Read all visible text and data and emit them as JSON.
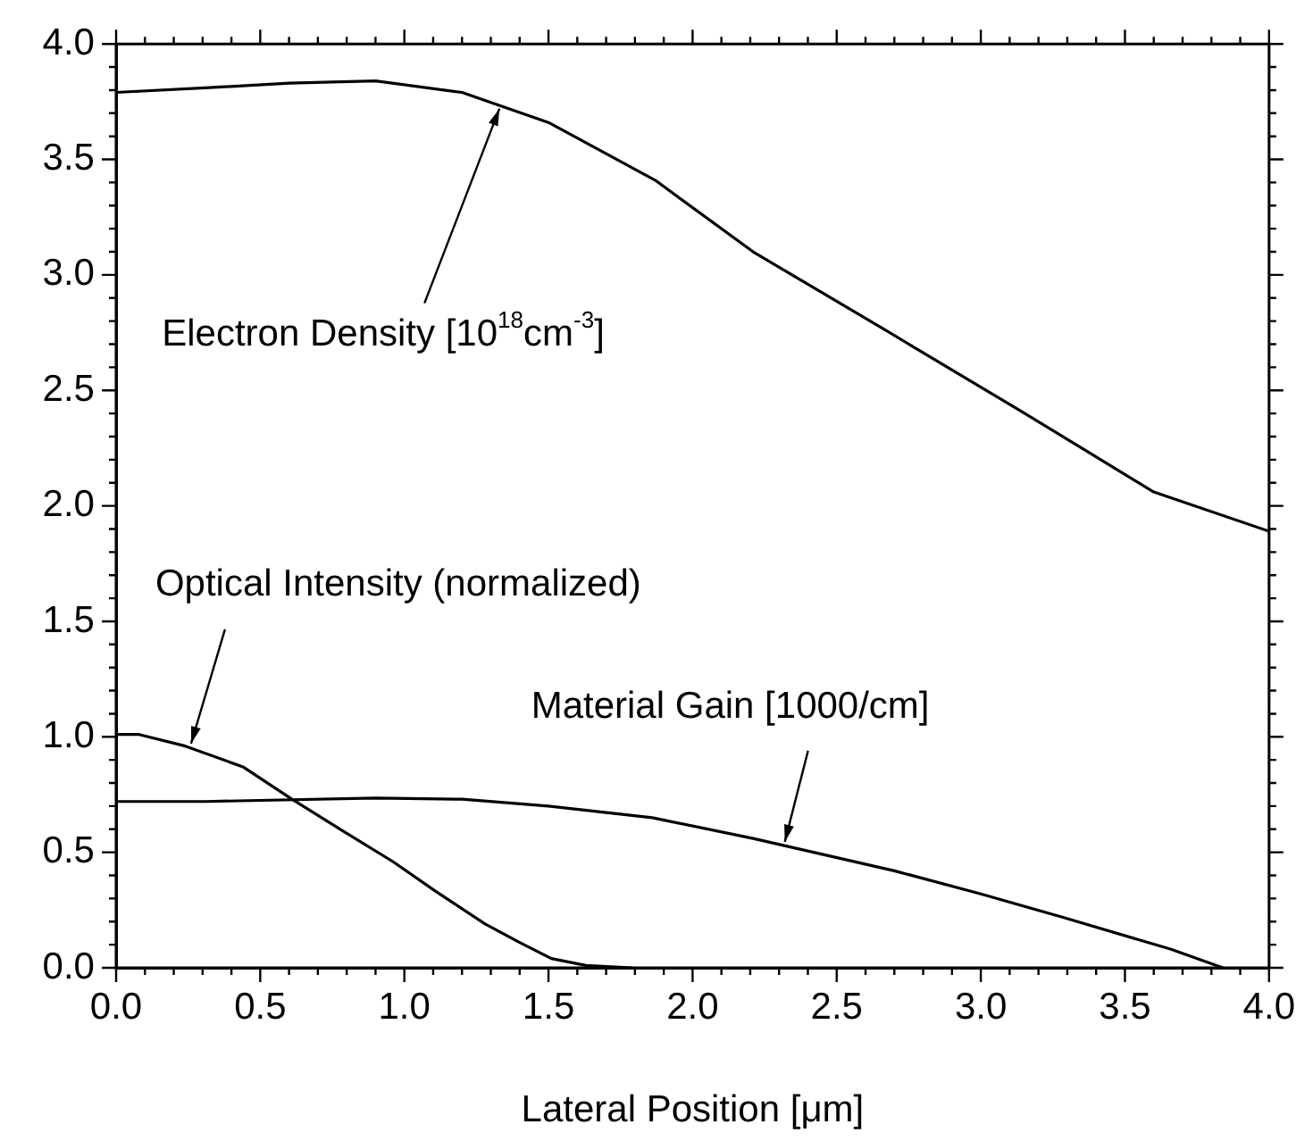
{
  "chart_data": {
    "type": "line",
    "xlabel": "Lateral Position [μm]",
    "xlim": [
      0,
      4.0
    ],
    "ylim": [
      0,
      4.0
    ],
    "xticks": [
      {
        "value": 0,
        "label": "0.0"
      },
      {
        "value": 0.1,
        "label": null
      },
      {
        "value": 0.2,
        "label": null
      },
      {
        "value": 0.3,
        "label": null
      },
      {
        "value": 0.4,
        "label": null
      },
      {
        "value": 0.5,
        "label": "0.5"
      },
      {
        "value": 0.6,
        "label": null
      },
      {
        "value": 0.7,
        "label": null
      },
      {
        "value": 0.8,
        "label": null
      },
      {
        "value": 0.9,
        "label": null
      },
      {
        "value": 1.0,
        "label": "1.0"
      },
      {
        "value": 1.1,
        "label": null
      },
      {
        "value": 1.2,
        "label": null
      },
      {
        "value": 1.3,
        "label": null
      },
      {
        "value": 1.4,
        "label": null
      },
      {
        "value": 1.5,
        "label": "1.5"
      },
      {
        "value": 1.6,
        "label": null
      },
      {
        "value": 1.7,
        "label": null
      },
      {
        "value": 1.8,
        "label": null
      },
      {
        "value": 1.9,
        "label": null
      },
      {
        "value": 2.0,
        "label": "2.0"
      },
      {
        "value": 2.1,
        "label": null
      },
      {
        "value": 2.2,
        "label": null
      },
      {
        "value": 2.3,
        "label": null
      },
      {
        "value": 2.4,
        "label": null
      },
      {
        "value": 2.5,
        "label": "2.5"
      },
      {
        "value": 2.6,
        "label": null
      },
      {
        "value": 2.7,
        "label": null
      },
      {
        "value": 2.8,
        "label": null
      },
      {
        "value": 2.9,
        "label": null
      },
      {
        "value": 3.0,
        "label": "3.0"
      },
      {
        "value": 3.1,
        "label": null
      },
      {
        "value": 3.2,
        "label": null
      },
      {
        "value": 3.3,
        "label": null
      },
      {
        "value": 3.4,
        "label": null
      },
      {
        "value": 3.5,
        "label": "3.5"
      },
      {
        "value": 3.6,
        "label": null
      },
      {
        "value": 3.7,
        "label": null
      },
      {
        "value": 3.8,
        "label": null
      },
      {
        "value": 3.9,
        "label": null
      },
      {
        "value": 4.0,
        "label": "4.0"
      }
    ],
    "yticks": [
      {
        "value": 0,
        "label": "0.0"
      },
      {
        "value": 0.1,
        "label": null
      },
      {
        "value": 0.2,
        "label": null
      },
      {
        "value": 0.3,
        "label": null
      },
      {
        "value": 0.4,
        "label": null
      },
      {
        "value": 0.5,
        "label": "0.5"
      },
      {
        "value": 0.6,
        "label": null
      },
      {
        "value": 0.7,
        "label": null
      },
      {
        "value": 0.8,
        "label": null
      },
      {
        "value": 0.9,
        "label": null
      },
      {
        "value": 1.0,
        "label": "1.0"
      },
      {
        "value": 1.1,
        "label": null
      },
      {
        "value": 1.2,
        "label": null
      },
      {
        "value": 1.3,
        "label": null
      },
      {
        "value": 1.4,
        "label": null
      },
      {
        "value": 1.5,
        "label": "1.5"
      },
      {
        "value": 1.6,
        "label": null
      },
      {
        "value": 1.7,
        "label": null
      },
      {
        "value": 1.8,
        "label": null
      },
      {
        "value": 1.9,
        "label": null
      },
      {
        "value": 2.0,
        "label": "2.0"
      },
      {
        "value": 2.1,
        "label": null
      },
      {
        "value": 2.2,
        "label": null
      },
      {
        "value": 2.3,
        "label": null
      },
      {
        "value": 2.4,
        "label": null
      },
      {
        "value": 2.5,
        "label": "2.5"
      },
      {
        "value": 2.6,
        "label": null
      },
      {
        "value": 2.7,
        "label": null
      },
      {
        "value": 2.8,
        "label": null
      },
      {
        "value": 2.9,
        "label": null
      },
      {
        "value": 3.0,
        "label": "3.0"
      },
      {
        "value": 3.1,
        "label": null
      },
      {
        "value": 3.2,
        "label": null
      },
      {
        "value": 3.3,
        "label": null
      },
      {
        "value": 3.4,
        "label": null
      },
      {
        "value": 3.5,
        "label": "3.5"
      },
      {
        "value": 3.6,
        "label": null
      },
      {
        "value": 3.7,
        "label": null
      },
      {
        "value": 3.8,
        "label": null
      },
      {
        "value": 3.9,
        "label": null
      },
      {
        "value": 4.0,
        "label": "4.0"
      }
    ],
    "marker": "none",
    "line_style": "solid",
    "annotations": [
      {
        "text": "Electron Density [10$^{18}$cm$^{-3}$]",
        "x": 1.33,
        "y": 3.72
      },
      {
        "text": "Optical Intensity (normalized)",
        "x": 0.26,
        "y": 0.955
      },
      {
        "text": "Material Gain [1000/cm]",
        "x": 2.32,
        "y": 0.53
      }
    ],
    "series": [
      {
        "color": "#000000",
        "x": [
          0,
          0.31,
          0.6,
          0.9,
          1.2,
          1.5,
          1.87,
          2.21,
          2.67,
          3.14,
          3.6,
          4.0
        ],
        "values": [
          3.79,
          3.81,
          3.83,
          3.84,
          3.79,
          3.66,
          3.41,
          3.1,
          2.76,
          2.41,
          2.06,
          1.89
        ]
      },
      {
        "color": "#000000",
        "x": [
          0,
          0.08,
          0.24,
          0.44,
          0.61,
          0.79,
          0.96,
          1.11,
          1.28,
          1.4,
          1.51,
          1.63,
          1.79
        ],
        "values": [
          1.01,
          1.01,
          0.96,
          0.87,
          0.73,
          0.59,
          0.46,
          0.33,
          0.19,
          0.11,
          0.04,
          0.01,
          0.0
        ]
      },
      {
        "color": "#000000",
        "x": [
          0,
          0.31,
          0.9,
          1.2,
          1.5,
          1.86,
          2.21,
          2.7,
          3.0,
          3.28,
          3.66,
          3.84
        ],
        "values": [
          0.72,
          0.72,
          0.735,
          0.73,
          0.7,
          0.65,
          0.56,
          0.42,
          0.32,
          0.22,
          0.08,
          0.0
        ]
      }
    ]
  }
}
